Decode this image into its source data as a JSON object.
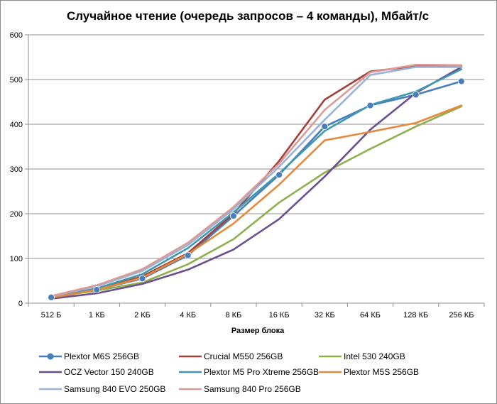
{
  "chart_data": {
    "type": "line",
    "title": "Случайное чтение (очередь запросов – 4 команды), Мбайт/с",
    "xlabel": "Размер блока",
    "ylabel": "",
    "categories": [
      "512 Б",
      "1 КБ",
      "2 КБ",
      "4 КБ",
      "8 КБ",
      "16 КБ",
      "32 КБ",
      "64 КБ",
      "128 КБ",
      "256 КБ"
    ],
    "ylim": [
      0,
      600
    ],
    "yticks": [
      0,
      100,
      200,
      300,
      400,
      500,
      600
    ],
    "grid": true,
    "legend": "bottom",
    "series": [
      {
        "name": "Plextor M6S 256GB",
        "color": "#4a7ebb",
        "marker": "circle",
        "values": [
          13,
          30,
          55,
          107,
          195,
          287,
          395,
          442,
          466,
          496
        ]
      },
      {
        "name": "Crucial M550 256GB",
        "color": "#a0403b",
        "marker": "none",
        "values": [
          12,
          30,
          60,
          112,
          200,
          318,
          455,
          518,
          530,
          530
        ]
      },
      {
        "name": "Intel 530 240GB",
        "color": "#8faf4e",
        "marker": "none",
        "values": [
          14,
          28,
          46,
          87,
          143,
          225,
          292,
          345,
          395,
          440
        ]
      },
      {
        "name": "OCZ Vector 150 240GB",
        "color": "#6a4f8f",
        "marker": "none",
        "values": [
          10,
          22,
          43,
          75,
          120,
          188,
          283,
          388,
          470,
          528
        ]
      },
      {
        "name": "Plextor M5 Pro Xtreme 256GB",
        "color": "#3f98af",
        "marker": "none",
        "values": [
          13,
          33,
          65,
          123,
          203,
          290,
          385,
          443,
          473,
          523
        ]
      },
      {
        "name": "Plextor M5S 256GB",
        "color": "#e48a3c",
        "marker": "none",
        "values": [
          12,
          30,
          57,
          110,
          178,
          265,
          364,
          383,
          403,
          442
        ]
      },
      {
        "name": "Samsung 840 EVO 250GB",
        "color": "#9bb1d6",
        "marker": "none",
        "values": [
          15,
          38,
          72,
          130,
          210,
          305,
          410,
          510,
          528,
          528
        ]
      },
      {
        "name": "Samsung 840 Pro 256GB",
        "color": "#d99a98",
        "marker": "none",
        "values": [
          16,
          40,
          76,
          135,
          215,
          312,
          432,
          516,
          533,
          532
        ]
      }
    ]
  }
}
